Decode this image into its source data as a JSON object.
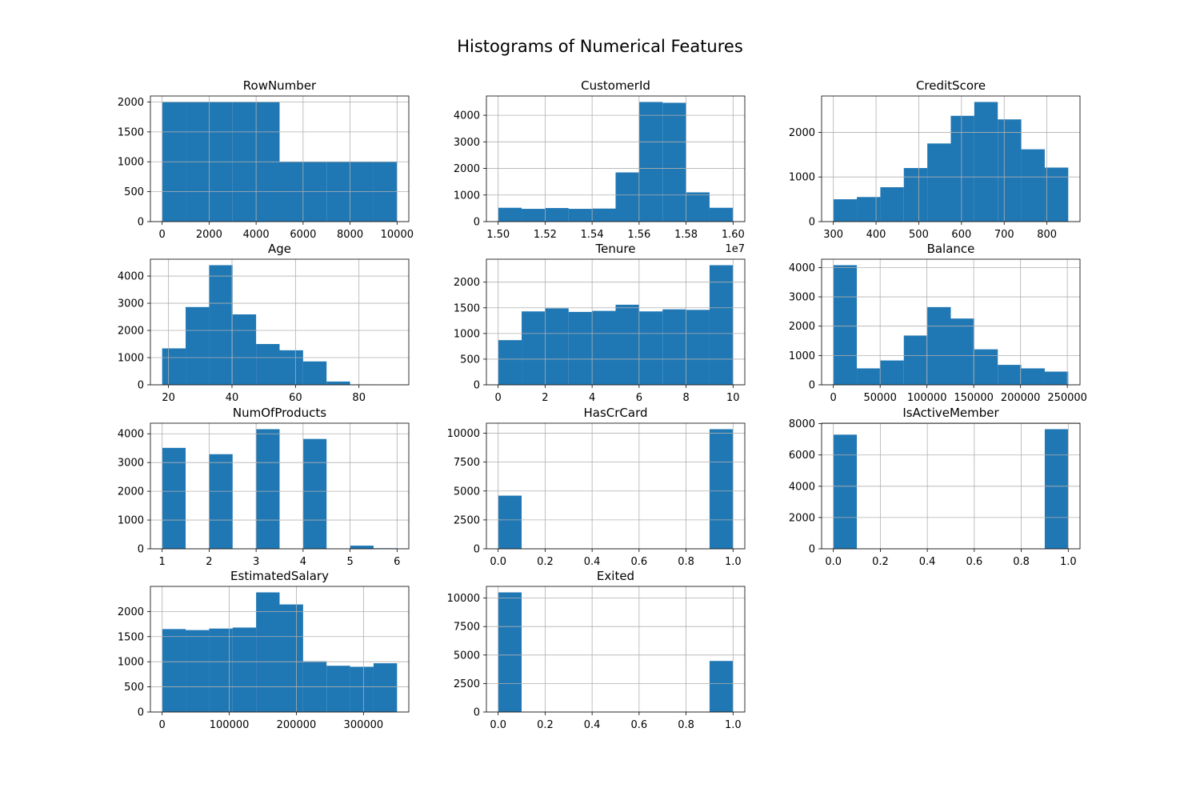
{
  "figure": {
    "title": "Histograms of Numerical Features",
    "bar_color": "#1f77b4"
  },
  "chart_data": [
    {
      "type": "bar",
      "title": "RowNumber",
      "bins": [
        0,
        1000,
        2000,
        3000,
        4000,
        5000,
        6000,
        7000,
        8000,
        9000,
        10000
      ],
      "counts": [
        2000,
        2000,
        2000,
        2000,
        2000,
        1000,
        1000,
        1000,
        1000,
        1000
      ],
      "xlim": [
        -500,
        10500
      ],
      "ylim": [
        0,
        2100
      ],
      "xticks": [
        0,
        2000,
        4000,
        6000,
        8000,
        10000
      ],
      "xtick_labels": [
        "0",
        "2000",
        "4000",
        "6000",
        "8000",
        "10000"
      ],
      "yticks": [
        0,
        500,
        1000,
        1500,
        2000
      ],
      "ytick_labels": [
        "0",
        "500",
        "1000",
        "1500",
        "2000"
      ],
      "offset_label": "",
      "grid": true
    },
    {
      "type": "bar",
      "title": "CustomerId",
      "bins": [
        1.5,
        1.51,
        1.52,
        1.53,
        1.54,
        1.55,
        1.56,
        1.57,
        1.58,
        1.59,
        1.6
      ],
      "counts": [
        520,
        480,
        510,
        480,
        490,
        1850,
        4500,
        4470,
        1100,
        520
      ],
      "xlim": [
        1.495,
        1.605
      ],
      "ylim": [
        0,
        4725
      ],
      "xticks": [
        1.5,
        1.52,
        1.54,
        1.56,
        1.58,
        1.6
      ],
      "xtick_labels": [
        "1.50",
        "1.52",
        "1.54",
        "1.56",
        "1.58",
        "1.60"
      ],
      "yticks": [
        0,
        1000,
        2000,
        3000,
        4000
      ],
      "ytick_labels": [
        "0",
        "1000",
        "2000",
        "3000",
        "4000"
      ],
      "offset_label": "1e7",
      "grid": true
    },
    {
      "type": "bar",
      "title": "CreditScore",
      "bins": [
        300,
        355,
        410,
        465,
        520,
        575,
        630,
        685,
        740,
        795,
        850
      ],
      "counts": [
        500,
        550,
        770,
        1200,
        1750,
        2370,
        2680,
        2290,
        1620,
        1210
      ],
      "xlim": [
        272.5,
        877.5
      ],
      "ylim": [
        0,
        2814
      ],
      "xticks": [
        300,
        400,
        500,
        600,
        700,
        800
      ],
      "xtick_labels": [
        "300",
        "400",
        "500",
        "600",
        "700",
        "800"
      ],
      "yticks": [
        0,
        1000,
        2000
      ],
      "ytick_labels": [
        "0",
        "1000",
        "2000"
      ],
      "offset_label": "",
      "grid": true
    },
    {
      "type": "bar",
      "title": "Age",
      "bins": [
        18,
        25.4,
        32.8,
        40.2,
        47.6,
        55,
        62.4,
        69.8,
        77.2,
        84.6,
        92
      ],
      "counts": [
        1340,
        2860,
        4400,
        2590,
        1500,
        1270,
        860,
        120,
        15,
        5
      ],
      "xlim": [
        14.3,
        95.7
      ],
      "ylim": [
        0,
        4620
      ],
      "xticks": [
        20,
        40,
        60,
        80
      ],
      "xtick_labels": [
        "20",
        "40",
        "60",
        "80"
      ],
      "yticks": [
        0,
        1000,
        2000,
        3000,
        4000
      ],
      "ytick_labels": [
        "0",
        "1000",
        "2000",
        "3000",
        "4000"
      ],
      "offset_label": "",
      "grid": true
    },
    {
      "type": "bar",
      "title": "Tenure",
      "bins": [
        0,
        1,
        2,
        3,
        4,
        5,
        6,
        7,
        8,
        9,
        10
      ],
      "counts": [
        870,
        1430,
        1490,
        1420,
        1440,
        1560,
        1430,
        1470,
        1460,
        2330
      ],
      "xlim": [
        -0.5,
        10.5
      ],
      "ylim": [
        0,
        2447
      ],
      "xticks": [
        0,
        2,
        4,
        6,
        8,
        10
      ],
      "xtick_labels": [
        "0",
        "2",
        "4",
        "6",
        "8",
        "10"
      ],
      "yticks": [
        0,
        500,
        1000,
        1500,
        2000
      ],
      "ytick_labels": [
        "0",
        "500",
        "1000",
        "1500",
        "2000"
      ],
      "offset_label": "",
      "grid": true
    },
    {
      "type": "bar",
      "title": "Balance",
      "bins": [
        0,
        25100,
        50200,
        75300,
        100400,
        125500,
        150600,
        175700,
        200800,
        225900,
        251000
      ],
      "counts": [
        4080,
        560,
        830,
        1680,
        2650,
        2260,
        1210,
        680,
        560,
        450
      ],
      "xlim": [
        -12550,
        263550
      ],
      "ylim": [
        0,
        4284
      ],
      "xticks": [
        0,
        50000,
        100000,
        150000,
        200000,
        250000
      ],
      "xtick_labels": [
        "0",
        "50000",
        "100000",
        "150000",
        "200000",
        "250000"
      ],
      "yticks": [
        0,
        1000,
        2000,
        3000,
        4000
      ],
      "ytick_labels": [
        "0",
        "1000",
        "2000",
        "3000",
        "4000"
      ],
      "offset_label": "",
      "grid": true
    },
    {
      "type": "bar",
      "title": "NumOfProducts",
      "bins": [
        1,
        1.5,
        2,
        2.5,
        3,
        3.5,
        4,
        4.5,
        5,
        5.5,
        6
      ],
      "counts": [
        3510,
        0,
        3290,
        0,
        4160,
        0,
        3820,
        0,
        110,
        20
      ],
      "xlim": [
        0.75,
        6.25
      ],
      "ylim": [
        0,
        4368
      ],
      "xticks": [
        1,
        2,
        3,
        4,
        5,
        6
      ],
      "xtick_labels": [
        "1",
        "2",
        "3",
        "4",
        "5",
        "6"
      ],
      "yticks": [
        0,
        1000,
        2000,
        3000,
        4000
      ],
      "ytick_labels": [
        "0",
        "1000",
        "2000",
        "3000",
        "4000"
      ],
      "offset_label": "",
      "grid": true
    },
    {
      "type": "bar",
      "title": "HasCrCard",
      "bins": [
        0,
        0.1,
        0.2,
        0.3,
        0.4,
        0.5,
        0.6,
        0.7,
        0.8,
        0.9,
        1.0
      ],
      "counts": [
        4600,
        0,
        0,
        0,
        0,
        0,
        0,
        0,
        0,
        10350
      ],
      "xlim": [
        -0.05,
        1.05
      ],
      "ylim": [
        0,
        10868
      ],
      "xticks": [
        0,
        0.2,
        0.4,
        0.6,
        0.8,
        1.0
      ],
      "xtick_labels": [
        "0.0",
        "0.2",
        "0.4",
        "0.6",
        "0.8",
        "1.0"
      ],
      "yticks": [
        0,
        2500,
        5000,
        7500,
        10000
      ],
      "ytick_labels": [
        "0",
        "2500",
        "5000",
        "7500",
        "10000"
      ],
      "offset_label": "",
      "grid": true
    },
    {
      "type": "bar",
      "title": "IsActiveMember",
      "bins": [
        0,
        0.1,
        0.2,
        0.3,
        0.4,
        0.5,
        0.6,
        0.7,
        0.8,
        0.9,
        1.0
      ],
      "counts": [
        7300,
        0,
        0,
        0,
        0,
        0,
        0,
        0,
        0,
        7650
      ],
      "xlim": [
        -0.05,
        1.05
      ],
      "ylim": [
        0,
        8032
      ],
      "xticks": [
        0,
        0.2,
        0.4,
        0.6,
        0.8,
        1.0
      ],
      "xtick_labels": [
        "0.0",
        "0.2",
        "0.4",
        "0.6",
        "0.8",
        "1.0"
      ],
      "yticks": [
        0,
        2000,
        4000,
        6000,
        8000
      ],
      "ytick_labels": [
        "0",
        "2000",
        "4000",
        "6000",
        "8000"
      ],
      "offset_label": "",
      "grid": true
    },
    {
      "type": "bar",
      "title": "EstimatedSalary",
      "bins": [
        0,
        35000,
        70000,
        105000,
        140000,
        175000,
        210000,
        245000,
        280000,
        315000,
        350000
      ],
      "counts": [
        1650,
        1630,
        1660,
        1680,
        2380,
        2140,
        1010,
        920,
        900,
        970
      ],
      "xlim": [
        -17500,
        367500
      ],
      "ylim": [
        0,
        2499
      ],
      "xticks": [
        0,
        100000,
        200000,
        300000
      ],
      "xtick_labels": [
        "0",
        "100000",
        "200000",
        "300000"
      ],
      "yticks": [
        0,
        500,
        1000,
        1500,
        2000
      ],
      "ytick_labels": [
        "0",
        "500",
        "1000",
        "1500",
        "2000"
      ],
      "offset_label": "",
      "grid": true
    },
    {
      "type": "bar",
      "title": "Exited",
      "bins": [
        0,
        0.1,
        0.2,
        0.3,
        0.4,
        0.5,
        0.6,
        0.7,
        0.8,
        0.9,
        1.0
      ],
      "counts": [
        10500,
        0,
        0,
        0,
        0,
        0,
        0,
        0,
        0,
        4480
      ],
      "xlim": [
        -0.05,
        1.05
      ],
      "ylim": [
        0,
        11025
      ],
      "xticks": [
        0,
        0.2,
        0.4,
        0.6,
        0.8,
        1.0
      ],
      "xtick_labels": [
        "0.0",
        "0.2",
        "0.4",
        "0.6",
        "0.8",
        "1.0"
      ],
      "yticks": [
        0,
        2500,
        5000,
        7500,
        10000
      ],
      "ytick_labels": [
        "0",
        "2500",
        "5000",
        "7500",
        "10000"
      ],
      "offset_label": "",
      "grid": true
    }
  ]
}
